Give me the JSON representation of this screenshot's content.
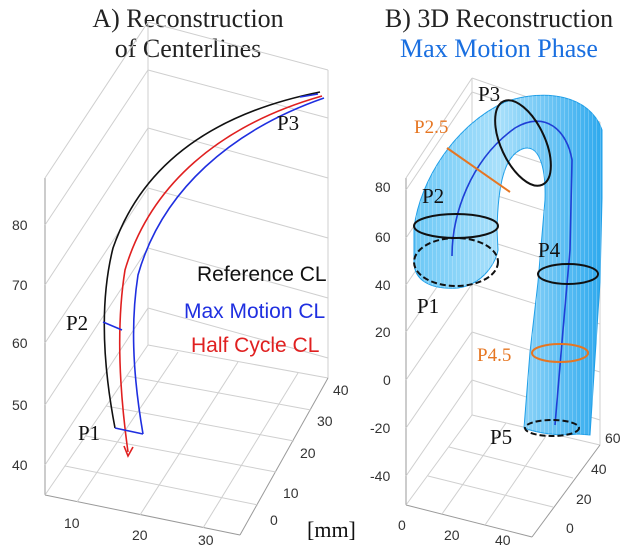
{
  "panel_a": {
    "title_line1": "A) Reconstruction",
    "title_line2": "of Centerlines",
    "z_ticks": [
      "80",
      "70",
      "60",
      "50",
      "40"
    ],
    "x_ticks": [
      "10",
      "20",
      "30"
    ],
    "y_ticks": [
      "40",
      "30",
      "20",
      "10",
      "0"
    ],
    "unit": "[mm]",
    "points": {
      "p1": "P1",
      "p2": "P2",
      "p3": "P3"
    },
    "legend": [
      {
        "label": "Reference CL",
        "color": "#111111"
      },
      {
        "label": "Max Motion CL",
        "color": "#1f2fe0"
      },
      {
        "label": "Half Cycle CL",
        "color": "#e02020"
      }
    ]
  },
  "panel_b": {
    "title_line1": "B) 3D Reconstruction",
    "title_line2": "Max Motion Phase",
    "z_ticks": [
      "80",
      "60",
      "40",
      "20",
      "0",
      "-20",
      "-40"
    ],
    "x_ticks": [
      "0",
      "20",
      "40"
    ],
    "y_ticks": [
      "60",
      "40",
      "20",
      "0"
    ],
    "points": {
      "p1": "P1",
      "p2": "P2",
      "p2_5": "P2.5",
      "p3": "P3",
      "p4": "P4",
      "p4_5": "P4.5",
      "p5": "P5"
    },
    "colors": {
      "vessel": "#29a9ef",
      "centerline": "#1f3fd6",
      "ring": "#111111",
      "ring_mid": "#e67622",
      "title": "#1a6fe0"
    }
  }
}
